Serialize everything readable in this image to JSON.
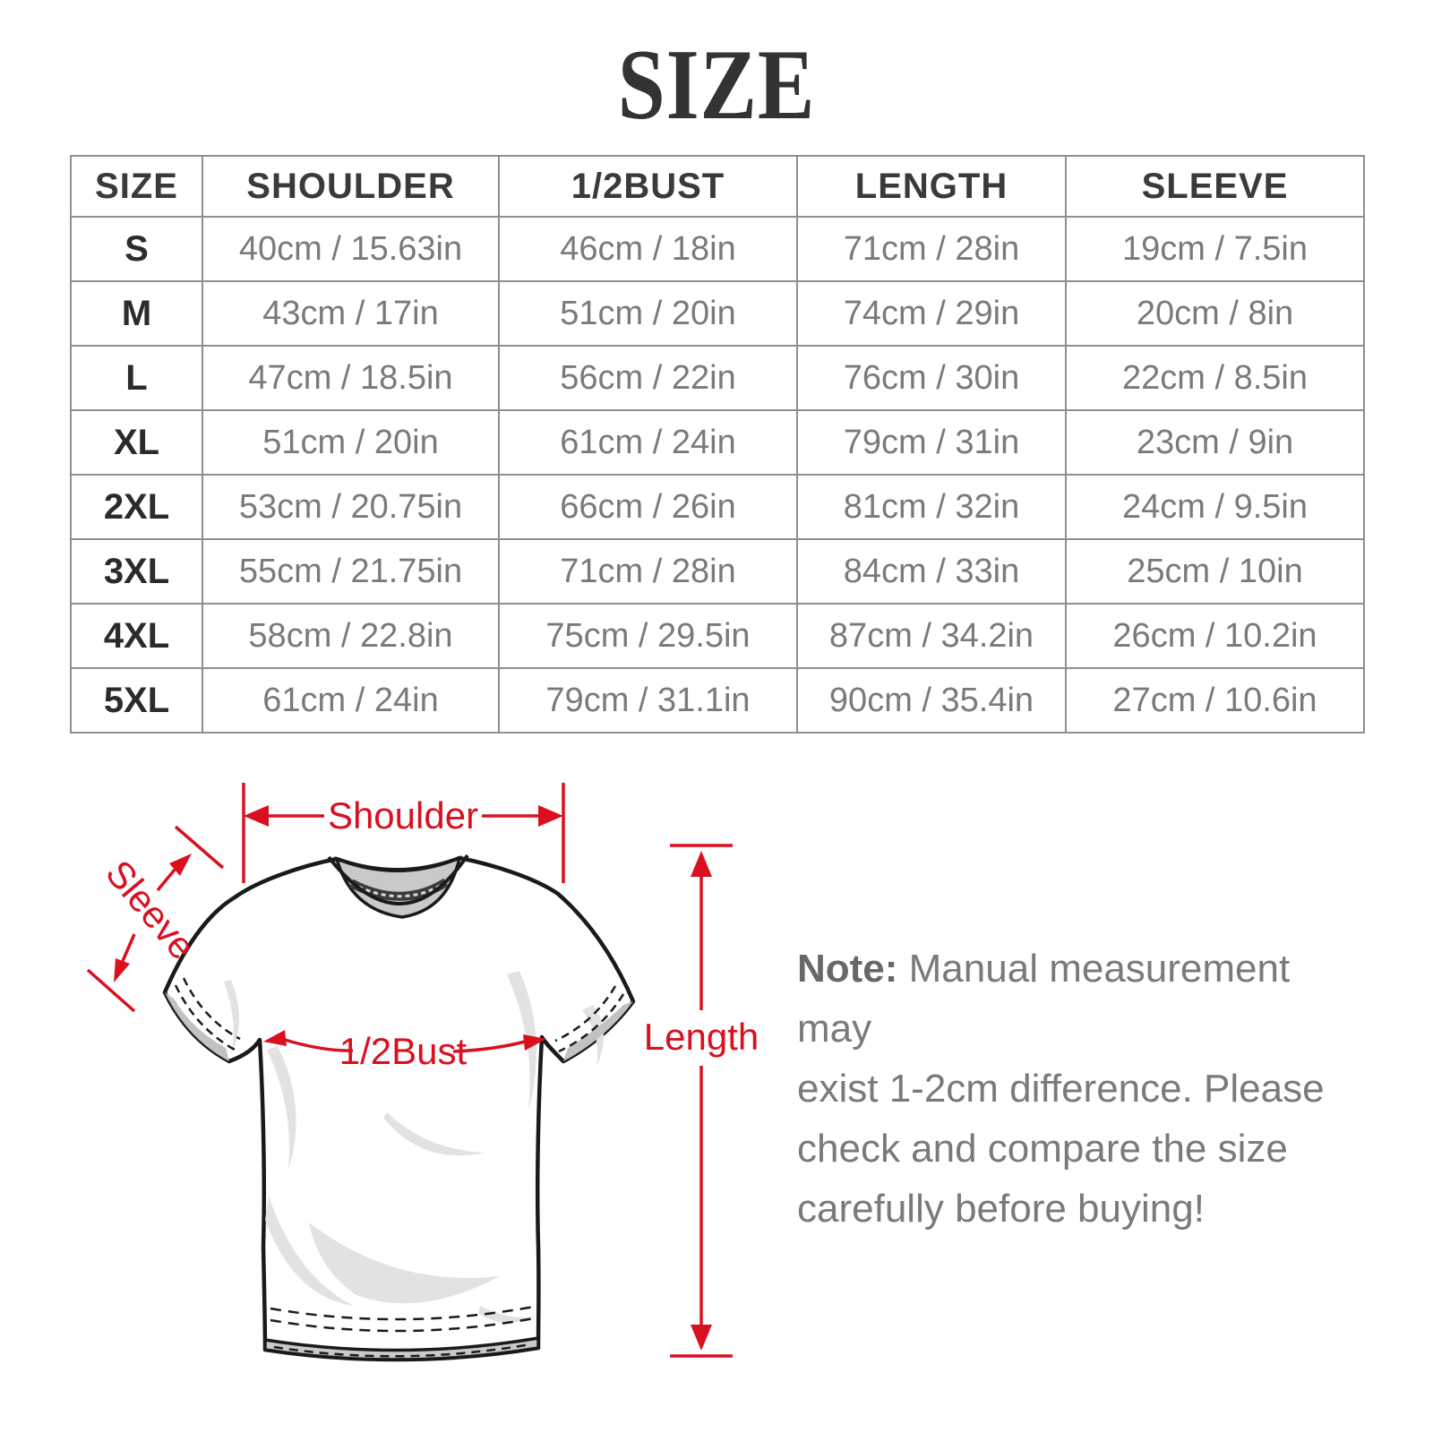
{
  "title": "SIZE",
  "table": {
    "headers": [
      "SIZE",
      "SHOULDER",
      "1/2BUST",
      "LENGTH",
      "SLEEVE"
    ],
    "rows": [
      [
        "S",
        "40cm / 15.63in",
        "46cm / 18in",
        "71cm / 28in",
        "19cm / 7.5in"
      ],
      [
        "M",
        "43cm / 17in",
        "51cm / 20in",
        "74cm / 29in",
        "20cm / 8in"
      ],
      [
        "L",
        "47cm / 18.5in",
        "56cm / 22in",
        "76cm / 30in",
        "22cm / 8.5in"
      ],
      [
        "XL",
        "51cm / 20in",
        "61cm / 24in",
        "79cm / 31in",
        "23cm / 9in"
      ],
      [
        "2XL",
        "53cm / 20.75in",
        "66cm / 26in",
        "81cm / 32in",
        "24cm / 9.5in"
      ],
      [
        "3XL",
        "55cm / 21.75in",
        "71cm / 28in",
        "84cm / 33in",
        "25cm / 10in"
      ],
      [
        "4XL",
        "58cm / 22.8in",
        "75cm / 29.5in",
        "87cm / 34.2in",
        "26cm / 10.2in"
      ],
      [
        "5XL",
        "61cm / 24in",
        "79cm / 31.1in",
        "90cm / 35.4in",
        "27cm / 10.6in"
      ]
    ]
  },
  "diagram": {
    "labels": {
      "shoulder": "Shoulder",
      "sleeve": "Sleeve",
      "bust": "1/2Bust",
      "length": "Length"
    },
    "accent_color": "#d9101f"
  },
  "note": {
    "prefix": "Note:",
    "lines": [
      "Manual measurement may",
      "exist 1-2cm difference. Please",
      "check and compare the size",
      "carefully before buying!"
    ]
  }
}
